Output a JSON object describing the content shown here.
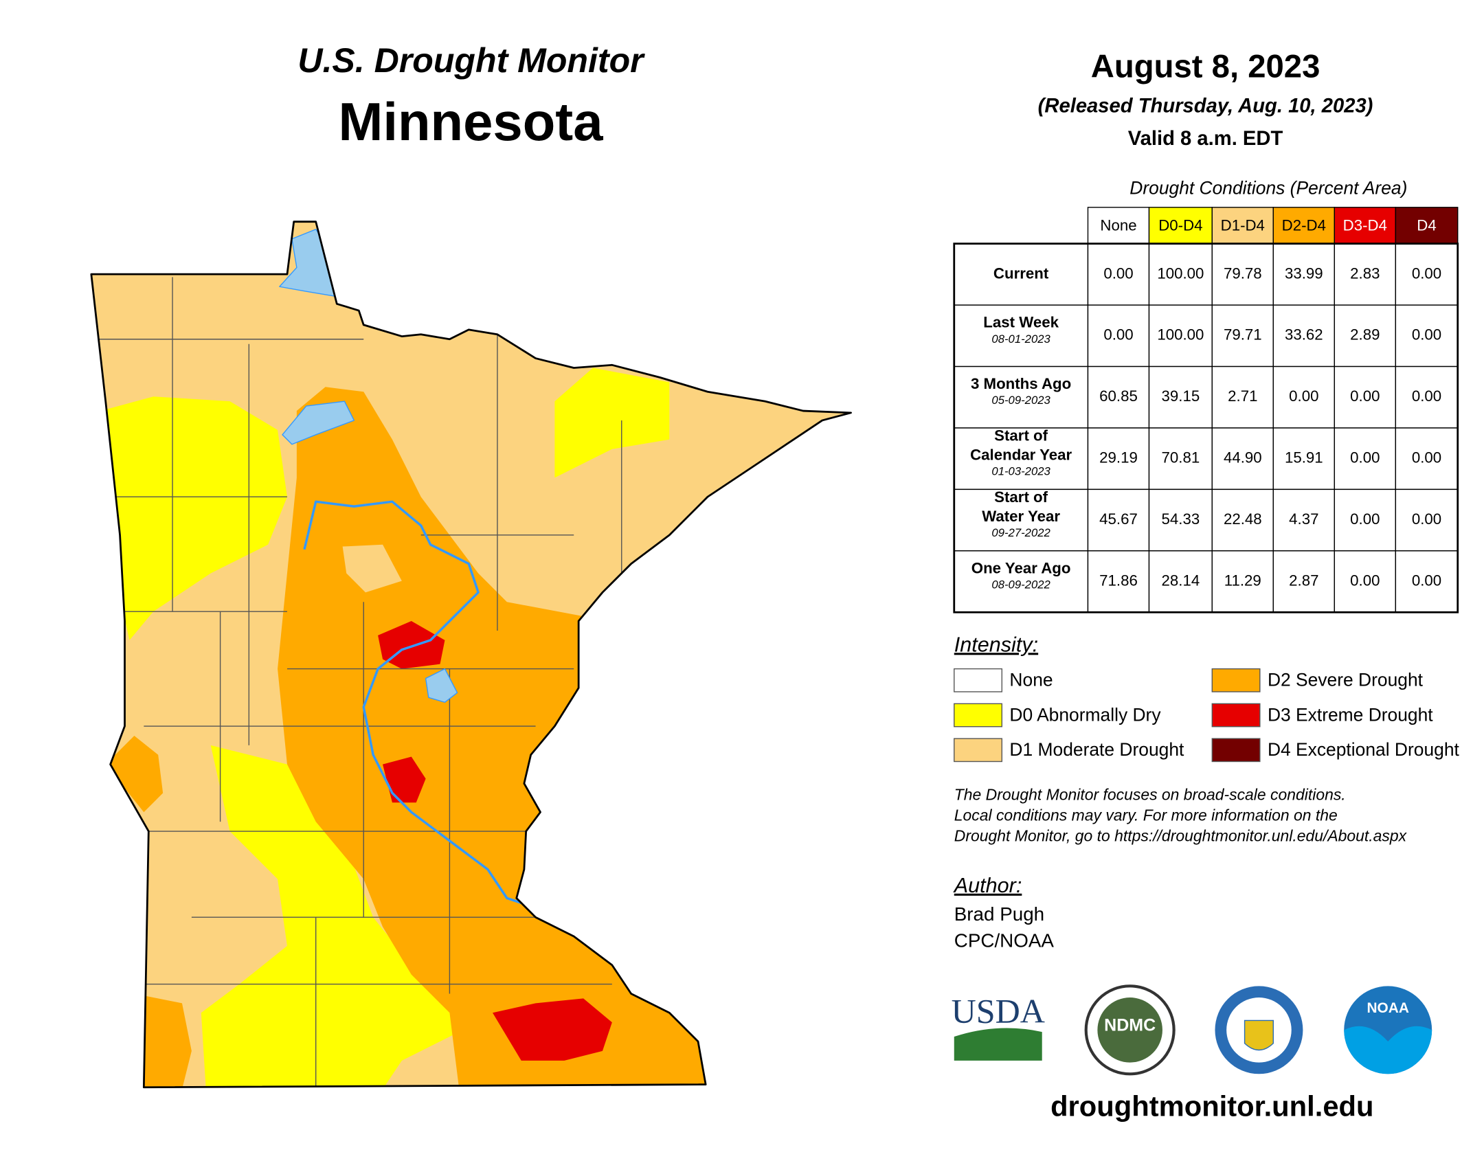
{
  "header": {
    "title": "U.S. Drought Monitor",
    "state": "Minnesota",
    "date": "August 8, 2023",
    "released": "(Released Thursday, Aug. 10, 2023)",
    "valid": "Valid 8 a.m. EDT"
  },
  "table": {
    "caption": "Drought Conditions (Percent Area)",
    "columns": [
      "None",
      "D0-D4",
      "D1-D4",
      "D2-D4",
      "D3-D4",
      "D4"
    ],
    "rows": [
      {
        "label": [
          "Current"
        ],
        "values": [
          "0.00",
          "100.00",
          "79.78",
          "33.99",
          "2.83",
          "0.00"
        ]
      },
      {
        "label": [
          "Last Week"
        ],
        "date": "08-01-2023",
        "values": [
          "0.00",
          "100.00",
          "79.71",
          "33.62",
          "2.89",
          "0.00"
        ]
      },
      {
        "label": [
          "3 Months Ago"
        ],
        "date": "05-09-2023",
        "values": [
          "60.85",
          "39.15",
          "2.71",
          "0.00",
          "0.00",
          "0.00"
        ]
      },
      {
        "label": [
          "Start of",
          "Calendar Year"
        ],
        "date": "01-03-2023",
        "values": [
          "29.19",
          "70.81",
          "44.90",
          "15.91",
          "0.00",
          "0.00"
        ]
      },
      {
        "label": [
          "Start of",
          "Water Year"
        ],
        "date": "09-27-2022",
        "values": [
          "45.67",
          "54.33",
          "22.48",
          "4.37",
          "0.00",
          "0.00"
        ]
      },
      {
        "label": [
          "One Year Ago"
        ],
        "date": "08-09-2022",
        "values": [
          "71.86",
          "28.14",
          "11.29",
          "2.87",
          "0.00",
          "0.00"
        ]
      }
    ]
  },
  "legend": {
    "title": "Intensity:",
    "items": [
      "None",
      "D0 Abnormally Dry",
      "D1 Moderate Drought",
      "D2 Severe Drought",
      "D3 Extreme Drought",
      "D4 Exceptional Drought"
    ]
  },
  "note": [
    "The Drought Monitor focuses on broad-scale conditions.",
    "Local conditions may vary. For more information on the",
    "Drought Monitor, go to https://droughtmonitor.unl.edu/About.aspx"
  ],
  "author": {
    "title": "Author:",
    "name": "Brad Pugh",
    "org": "CPC/NOAA"
  },
  "logos": {
    "usda": "USDA",
    "ndmc": "NDMC",
    "noaa": "NOAA"
  },
  "url": "droughtmonitor.unl.edu"
}
